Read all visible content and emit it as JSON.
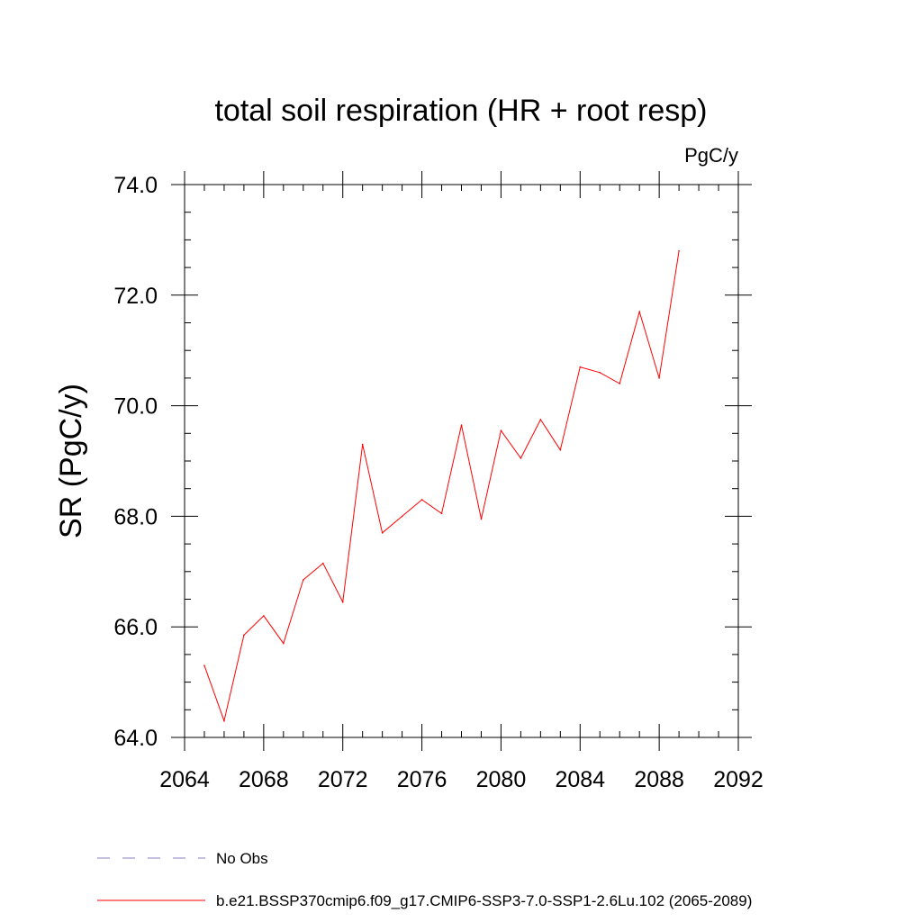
{
  "chart_data": {
    "type": "line",
    "title": "total soil respiration (HR + root resp)",
    "units": "PgC/y",
    "ylabel": "SR  (PgC/y)",
    "xlabel": "",
    "xlim": [
      2064,
      2092
    ],
    "ylim": [
      64.0,
      74.0
    ],
    "x_major_ticks": [
      2064,
      2068,
      2072,
      2076,
      2080,
      2084,
      2088,
      2092
    ],
    "x_tick_labels": [
      "2064",
      "2068",
      "2072",
      "2076",
      "2080",
      "2084",
      "2088",
      "2092"
    ],
    "y_major_ticks": [
      64.0,
      66.0,
      68.0,
      70.0,
      72.0,
      74.0
    ],
    "y_tick_labels": [
      "64.0",
      "66.0",
      "68.0",
      "70.0",
      "72.0",
      "74.0"
    ],
    "grid": false,
    "legend_position": "bottom",
    "series": [
      {
        "name": "b.e21.BSSP370cmip6.f09_g17.CMIP6-SSP3-7.0-SSP1-2.6Lu.102 (2065-2089)",
        "color": "#ff0000",
        "style": "solid",
        "x": [
          2065,
          2066,
          2067,
          2068,
          2069,
          2070,
          2071,
          2072,
          2073,
          2074,
          2075,
          2076,
          2077,
          2078,
          2079,
          2080,
          2081,
          2082,
          2083,
          2084,
          2085,
          2086,
          2087,
          2088,
          2089
        ],
        "y": [
          65.3,
          64.3,
          65.85,
          66.2,
          65.7,
          66.85,
          67.15,
          66.45,
          69.3,
          67.7,
          68.0,
          68.3,
          68.05,
          69.65,
          67.95,
          69.55,
          69.05,
          69.75,
          69.2,
          70.7,
          70.6,
          70.4,
          71.7,
          70.5,
          72.8
        ]
      },
      {
        "name": "No Obs",
        "color": "#8a7fc0",
        "style": "dashed",
        "x": [],
        "y": []
      }
    ]
  },
  "legend": {
    "items": [
      {
        "label": "No Obs",
        "color": "#8a7fc0",
        "style": "dashed"
      },
      {
        "label": "b.e21.BSSP370cmip6.f09_g17.CMIP6-SSP3-7.0-SSP1-2.6Lu.102 (2065-2089)",
        "color": "#ff0000",
        "style": "solid"
      }
    ]
  }
}
